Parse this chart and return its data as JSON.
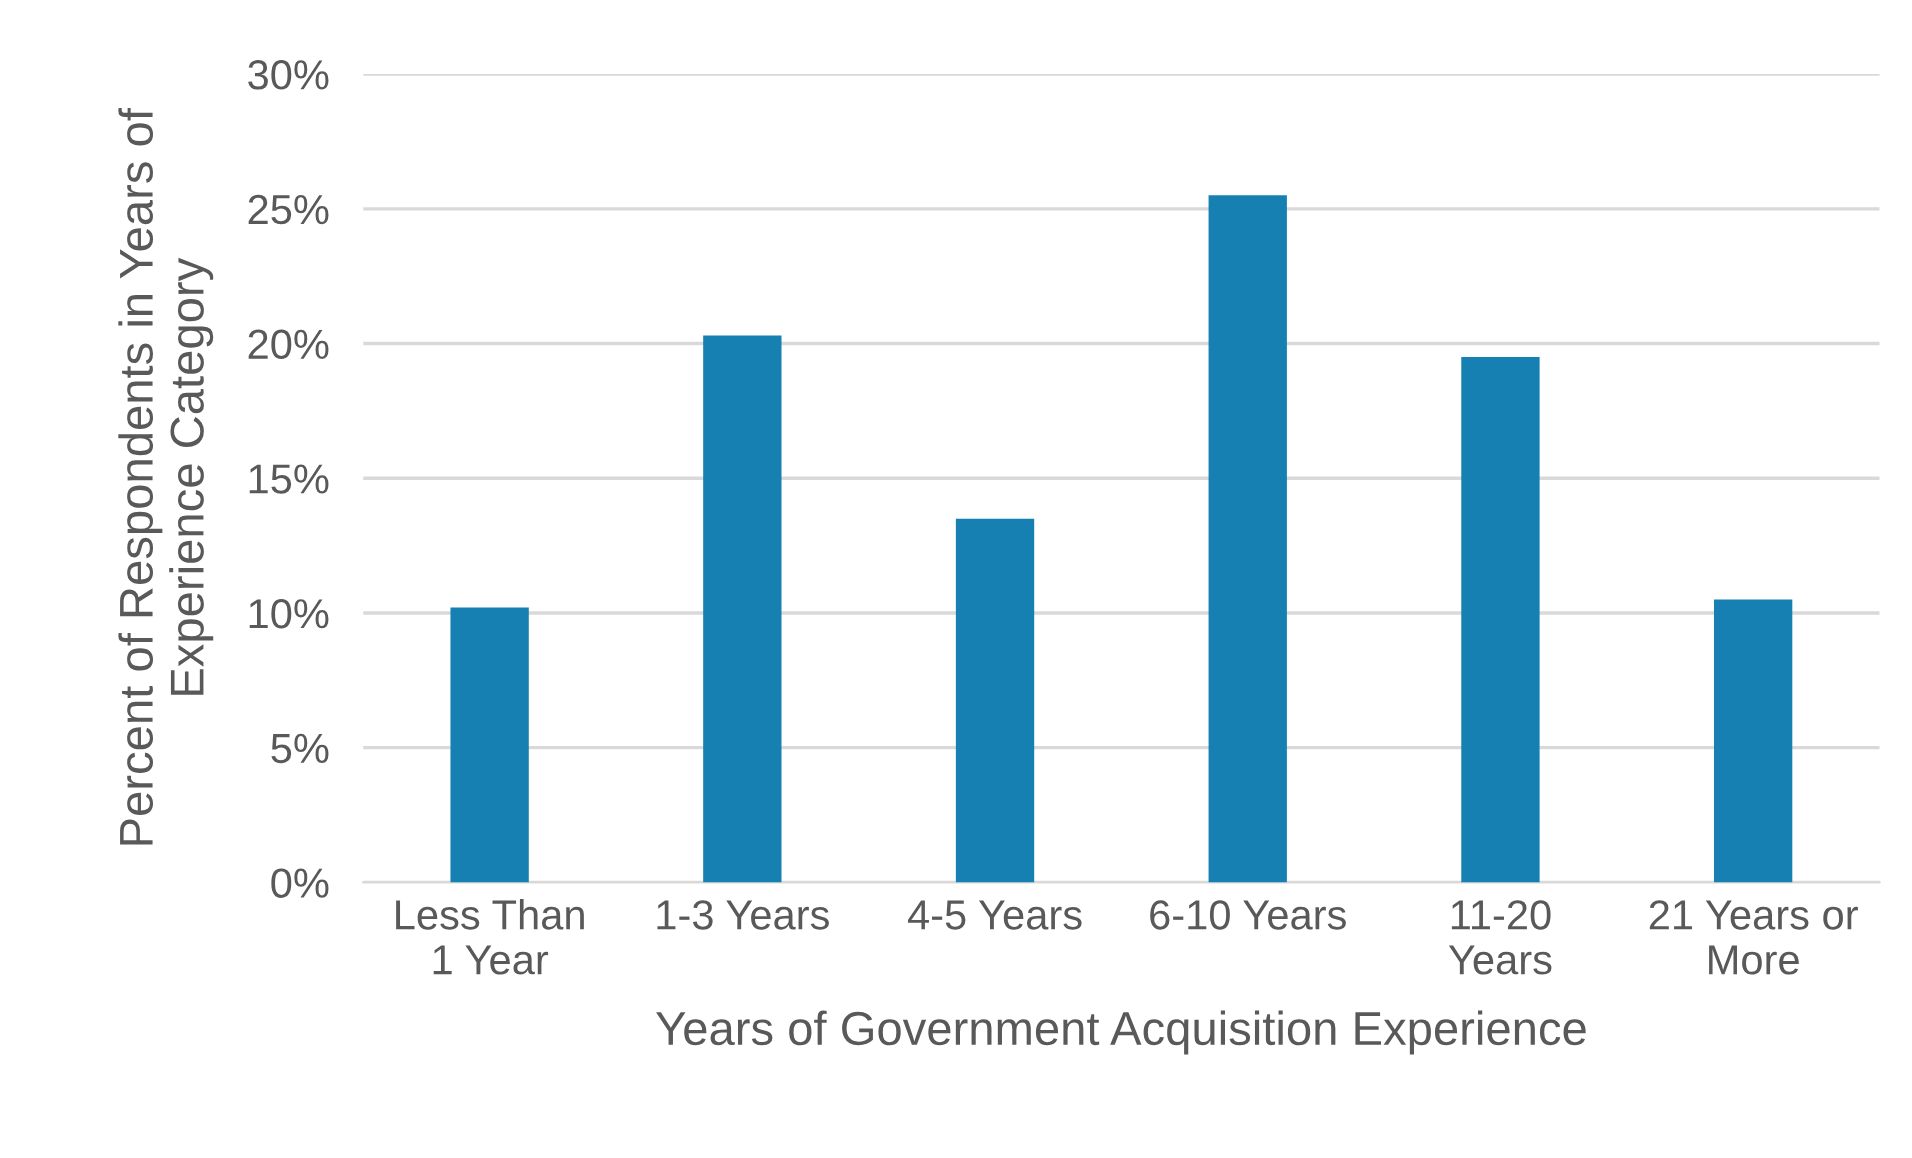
{
  "chart_data": {
    "type": "bar",
    "categories": [
      "Less Than\n1 Year",
      "1-3 Years",
      "4-5 Years",
      "6-10 Years",
      "11-20\nYears",
      "21 Years or\nMore"
    ],
    "values": [
      10.2,
      20.3,
      13.5,
      25.5,
      19.5,
      10.5
    ],
    "color": "#1780b3",
    "xlabel": "Years of Government Acquisition Experience",
    "ylabel": "Percent of Respondents in Years of\nExperience Category",
    "ylim": [
      0,
      30
    ],
    "yticks": [
      {
        "value": 0,
        "label": "0%"
      },
      {
        "value": 5,
        "label": "5%"
      },
      {
        "value": 10,
        "label": "10%"
      },
      {
        "value": 15,
        "label": "15%"
      },
      {
        "value": 20,
        "label": "20%"
      },
      {
        "value": 25,
        "label": "25%"
      },
      {
        "value": 30,
        "label": "30%"
      }
    ],
    "grid": "y"
  }
}
